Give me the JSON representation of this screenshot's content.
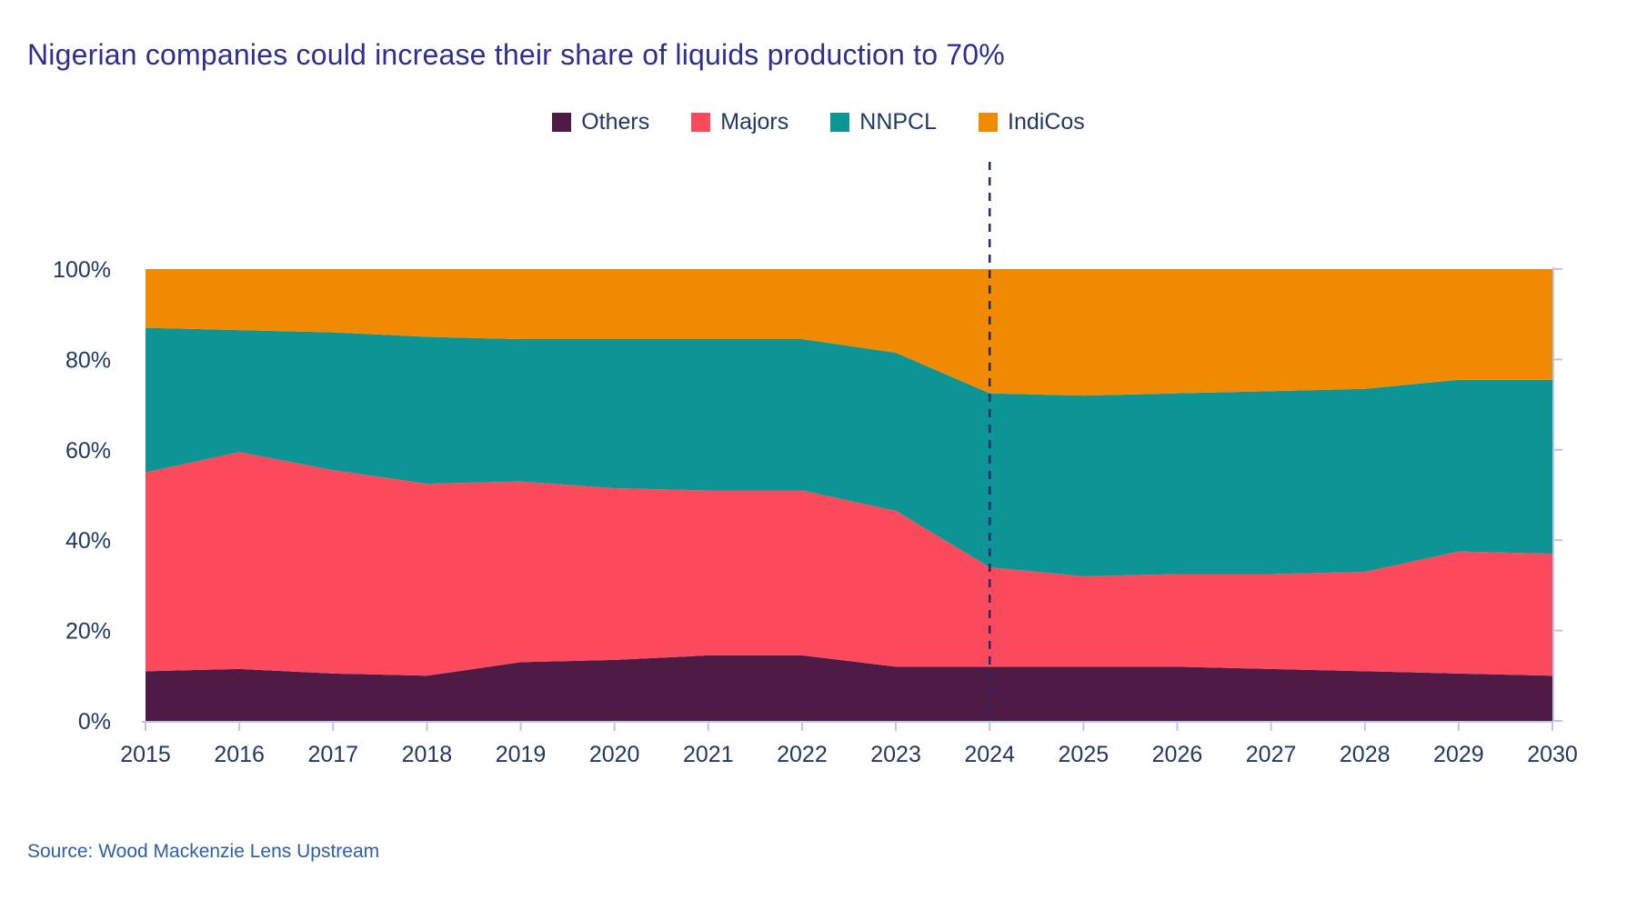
{
  "title": "Nigerian companies could increase their share of liquids production to 70%",
  "source": "Source: Wood Mackenzie Lens Upstream",
  "colors": {
    "others": "#4F1A44",
    "majors": "#FA4A5C",
    "nnpcl": "#0D9494",
    "indicos": "#F08A00",
    "title_text": "#2C2F90",
    "axis_text": "#1F3864",
    "source_text": "#2D5FA6",
    "axis_line": "#BCC6EC",
    "dashed_line": "#1F2B70"
  },
  "legend": [
    {
      "id": "others",
      "label": "Others"
    },
    {
      "id": "majors",
      "label": "Majors"
    },
    {
      "id": "nnpcl",
      "label": "NNPCL"
    },
    {
      "id": "indicos",
      "label": "IndiCos"
    }
  ],
  "chart_data": {
    "type": "area",
    "stacked": true,
    "normalized_percent": true,
    "title": "Nigerian companies could increase their share of liquids production to 70%",
    "x": [
      2015,
      2016,
      2017,
      2018,
      2019,
      2020,
      2021,
      2022,
      2023,
      2024,
      2025,
      2026,
      2027,
      2028,
      2029,
      2030
    ],
    "series": [
      {
        "name": "Others",
        "color_key": "others",
        "values": [
          11,
          11.5,
          10.5,
          10,
          13,
          13.5,
          14.5,
          14.5,
          12,
          12,
          12,
          12,
          11.5,
          11,
          10.5,
          10
        ]
      },
      {
        "name": "Majors",
        "color_key": "majors",
        "values": [
          44,
          48,
          45,
          42.5,
          40,
          38,
          36.5,
          36.5,
          34.5,
          22,
          20,
          20.5,
          21,
          22,
          27,
          27
        ]
      },
      {
        "name": "NNPCL",
        "color_key": "nnpcl",
        "values": [
          32,
          27,
          30.5,
          32.5,
          31.5,
          33,
          33.5,
          33.5,
          35,
          38.5,
          40,
          40,
          40.5,
          40.5,
          38,
          38.5
        ]
      },
      {
        "name": "IndiCos",
        "color_key": "indicos",
        "values": [
          13,
          13.5,
          14,
          15,
          15.5,
          15.5,
          15.5,
          15.5,
          18.5,
          27.5,
          28,
          27.5,
          27,
          26.5,
          24.5,
          24.5
        ]
      }
    ],
    "ylim": [
      0,
      100
    ],
    "y_ticks": [
      {
        "value": 0,
        "label": "0%"
      },
      {
        "value": 20,
        "label": "20%"
      },
      {
        "value": 40,
        "label": "40%"
      },
      {
        "value": 60,
        "label": "60%"
      },
      {
        "value": 80,
        "label": "80%"
      },
      {
        "value": 100,
        "label": "100%"
      }
    ],
    "annotation": {
      "type": "vline_dashed",
      "x": 2024
    },
    "legend_position": "top-center",
    "grid": false
  }
}
